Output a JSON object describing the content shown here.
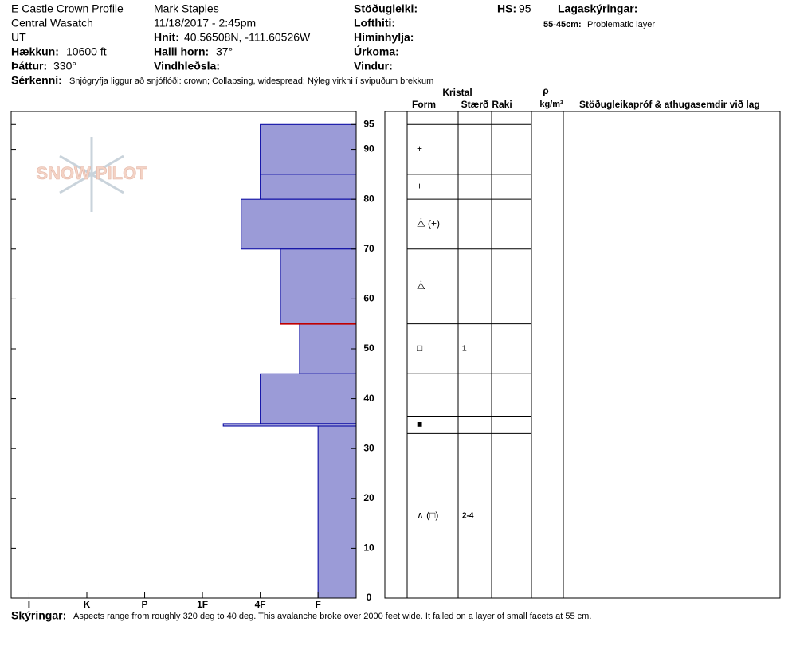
{
  "header": {
    "profile": "E Castle Crown Profile",
    "range": "Central Wasatch",
    "state": "UT",
    "elevation_label": "Hækkun:",
    "elevation": "10600 ft",
    "aspect_label": "Þáttur:",
    "aspect": "330°",
    "observer": "Mark Staples",
    "datetime": "11/18/2017 - 2:45pm",
    "coords_label": "Hnit:",
    "coords": "40.56508N, -111.60526W",
    "slope_label": "Halli horn:",
    "slope": "37°",
    "wind_loading_label": "Vindhleðsla:",
    "stability_label": "Stöðugleiki:",
    "air_temp_label": "Lofthiti:",
    "sky_label": "Himinhylja:",
    "precip_label": "Úrkoma:",
    "wind_label": "Vindur:",
    "hs_label": "HS:",
    "hs": "95",
    "legend_title": "Lagaskýringar:",
    "legend_range": "55-45cm:",
    "legend_text": "Problematic layer",
    "features_label": "Sérkenni:",
    "features": "Snjógryfja liggur að snjóflóði: crown; Collapsing, widespread; Nýleg virkni í svipuðum brekkum",
    "logo": "SNOW PILOT"
  },
  "chart_data": {
    "type": "hardness-profile",
    "color": "#9b9bd7",
    "edge_color": "#0000a0",
    "problem_color": "#c00000",
    "xlim": [
      6.31,
      0.34
    ],
    "xticks": [
      {
        "value": 6,
        "label": "I"
      },
      {
        "value": 5,
        "label": "K"
      },
      {
        "value": 4,
        "label": "P"
      },
      {
        "value": 3,
        "label": "1F"
      },
      {
        "value": 2,
        "label": "4F"
      },
      {
        "value": 1,
        "label": "F"
      }
    ],
    "ylim": [
      0,
      97.6
    ],
    "yticks": [
      0,
      10,
      20,
      30,
      40,
      50,
      60,
      70,
      80,
      90,
      95
    ],
    "layers": [
      {
        "top": 95,
        "bottom": 85,
        "hardness": 2
      },
      {
        "top": 85,
        "bottom": 80,
        "hardness": 2
      },
      {
        "top": 80,
        "bottom": 70,
        "hardness": 2.33
      },
      {
        "top": 70,
        "bottom": 55,
        "hardness": 1.65
      },
      {
        "top": 55,
        "bottom": 45,
        "hardness": 1.32
      },
      {
        "top": 45,
        "bottom": 35,
        "hardness": 2
      },
      {
        "top": 35,
        "bottom": 34.5,
        "hardness": 2.64
      },
      {
        "top": 34.5,
        "bottom": 0,
        "hardness": 1
      }
    ],
    "problem_layer": 4
  },
  "table": {
    "crystal": "Kristal",
    "form": "Form",
    "size": "Stærð",
    "moisture": "Raki",
    "rho": "ρ",
    "density_unit": "kg/m³",
    "tests": "Stöðugleikapróf & athugasemdir við lag",
    "layers": [
      {
        "top": 95,
        "bottom": 85,
        "form": "+",
        "size": null
      },
      {
        "top": 85,
        "bottom": 80,
        "form": "+",
        "size": null
      },
      {
        "top": 80,
        "bottom": 70,
        "form": "⧊ (+)",
        "size": null
      },
      {
        "top": 70,
        "bottom": 55,
        "form": "⧊",
        "size": null
      },
      {
        "top": 55,
        "bottom": 45,
        "form": "□",
        "size": "1"
      },
      {
        "top": 45,
        "bottom": 36.5,
        "form": null,
        "size": null
      },
      {
        "top": 36.5,
        "bottom": 33,
        "form": "■",
        "size": null
      },
      {
        "top": 33,
        "bottom": 0,
        "form": "∧ (□)",
        "size": "2-4"
      }
    ]
  },
  "footer": {
    "notes_label": "Skýringar:",
    "notes": "Aspects range from roughly 320 deg to 40 deg. This avalanche broke over 2000 feet wide. It failed on a layer of small facets at 55 cm."
  }
}
